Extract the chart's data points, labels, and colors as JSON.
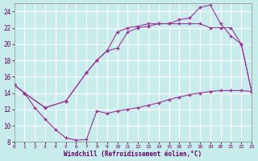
{
  "xlabel": "Windchill (Refroidissement éolien,°C)",
  "bg_color": "#c8ecec",
  "line_color": "#993399",
  "grid_color": "#aacccc",
  "grid_major_color": "#ffffff",
  "xmin": 0,
  "xmax": 23,
  "ymin": 8,
  "ymax": 25,
  "yticks": [
    8,
    10,
    12,
    14,
    16,
    18,
    20,
    22,
    24
  ],
  "xticks": [
    0,
    1,
    2,
    3,
    4,
    5,
    6,
    7,
    8,
    9,
    10,
    11,
    12,
    13,
    14,
    15,
    16,
    17,
    18,
    19,
    20,
    21,
    22,
    23
  ],
  "line1_x": [
    0,
    1,
    2,
    3,
    4,
    5,
    6,
    7,
    8,
    9,
    10,
    11,
    12,
    13,
    14,
    15,
    16,
    17,
    18,
    19,
    20,
    21,
    22,
    23
  ],
  "line1_y": [
    15.0,
    14.0,
    12.2,
    10.8,
    9.5,
    8.5,
    8.2,
    8.3,
    11.8,
    11.5,
    11.8,
    12.0,
    12.2,
    12.5,
    12.8,
    13.2,
    13.5,
    13.8,
    14.0,
    14.2,
    14.3,
    14.3,
    14.3,
    14.2
  ],
  "line2_x": [
    0,
    1,
    3,
    5,
    7,
    8,
    9,
    10,
    11,
    12,
    13,
    14,
    15,
    16,
    17,
    18,
    19,
    20,
    21,
    22,
    23
  ],
  "line2_y": [
    15.0,
    14.0,
    12.2,
    13.0,
    16.5,
    18.0,
    19.2,
    19.5,
    21.5,
    22.0,
    22.2,
    22.5,
    22.5,
    22.5,
    22.5,
    22.5,
    22.0,
    22.0,
    22.0,
    20.0,
    14.2
  ],
  "line3_x": [
    0,
    1,
    3,
    5,
    7,
    8,
    9,
    10,
    11,
    12,
    13,
    14,
    15,
    16,
    17,
    18,
    19,
    20,
    21,
    22,
    23
  ],
  "line3_y": [
    15.0,
    14.0,
    12.2,
    13.0,
    16.5,
    18.0,
    19.2,
    21.5,
    22.0,
    22.2,
    22.5,
    22.5,
    22.5,
    23.0,
    23.2,
    24.5,
    24.8,
    22.5,
    21.0,
    20.0,
    14.2
  ]
}
